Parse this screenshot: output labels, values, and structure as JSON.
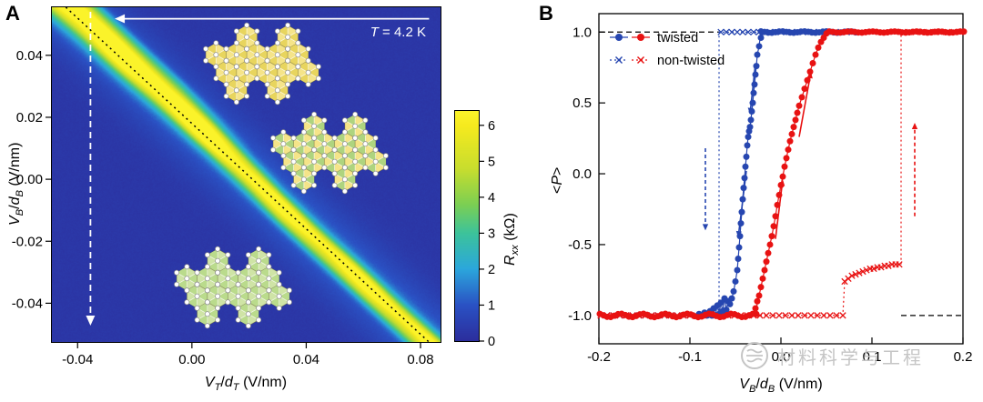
{
  "figure": {
    "background": "#ffffff",
    "watermark": {
      "text": "材料科学与工程"
    }
  },
  "chart_data": [
    {
      "id": "panel-a",
      "panel_label": "A",
      "type": "heatmap",
      "annotation": "T = 4.2 K",
      "xlabel": "V_T/d_T (V/nm)",
      "ylabel": "V_B/d_B (V/nm)",
      "xlim": [
        -0.049,
        0.087
      ],
      "ylim": [
        -0.0525,
        0.0555
      ],
      "xtick_values": [
        -0.04,
        0,
        0.04,
        0.08
      ],
      "xtick_labels": [
        "-0.04",
        "0.00",
        "0.04",
        "0.08"
      ],
      "ytick_values": [
        0.04,
        0.02,
        0,
        -0.02,
        -0.04
      ],
      "ytick_labels": [
        "0.04",
        "0.02",
        "0.00",
        "-0.02",
        "-0.04"
      ],
      "colorbar": {
        "label": "R_xx (kΩ)",
        "tick_values": [
          0,
          1,
          2,
          3,
          4,
          5,
          6
        ],
        "tick_labels": [
          "0",
          "1",
          "2",
          "3",
          "4",
          "5",
          "6"
        ],
        "vmin": 0,
        "vmax": 6.4
      },
      "colormap": [
        [
          0,
          "#2b2e9d"
        ],
        [
          1,
          "#2a52c4"
        ],
        [
          2,
          "#2ba7dc"
        ],
        [
          3,
          "#3cc39b"
        ],
        [
          3.8,
          "#7ccf53"
        ],
        [
          4.8,
          "#c8dd2e"
        ],
        [
          6,
          "#f6ea1e"
        ],
        [
          6.4,
          "#fbf32a"
        ]
      ],
      "background_value": 0.25,
      "ridge": {
        "slope": -0.85,
        "intercept": 0.018,
        "width": 0.0032,
        "peak": 6.3,
        "widen_left": 0.7,
        "glow_width": 0.011,
        "glow_amp": 1.1,
        "secondary": [
          {
            "offset": 0.0045,
            "amp": 2.6,
            "width": 0.0022,
            "fade_end": 0.032
          },
          {
            "offset": 0.0085,
            "amp": 1.5,
            "width": 0.002,
            "fade_end": 0.022
          },
          {
            "offset": -0.005,
            "amp": 1.4,
            "width": 0.002,
            "fade_start": 0.005
          }
        ]
      },
      "annotations": {
        "sweep_arrow": {
          "x1": 0.083,
          "x2": -0.027,
          "y": 0.0518,
          "color": "#ffffff"
        },
        "dashed_arrow_x": -0.0355,
        "diagonal_guide": true
      },
      "insets": [
        {
          "palette": "yellow",
          "name": "lattice-inset-top"
        },
        {
          "palette": "mixed",
          "name": "lattice-inset-middle"
        },
        {
          "palette": "green",
          "name": "lattice-inset-bottom"
        }
      ],
      "inset_palettes": {
        "yellow": [
          "#f5e489",
          "#e8d55e"
        ],
        "mixed": [
          "#f5e489",
          "#aed47f"
        ],
        "green": [
          "#cfe4a6",
          "#badb8c"
        ]
      }
    },
    {
      "id": "panel-b",
      "panel_label": "B",
      "type": "scatter",
      "xlabel": "V_B/d_B (V/nm)",
      "ylabel": "<P>",
      "xlim": [
        -0.2,
        0.2
      ],
      "ylim": [
        -1.2,
        1.13
      ],
      "xtick_values": [
        -0.2,
        -0.1,
        0,
        0.1,
        0.2
      ],
      "xtick_labels": [
        "-0.2",
        "-0.1",
        "0.0",
        "0.1",
        "0.2"
      ],
      "ytick_values": [
        -1,
        -0.5,
        0,
        0.5,
        1
      ],
      "ytick_labels": [
        "-1.0",
        "-0.5",
        "0.0",
        "0.5",
        "1.0"
      ],
      "colors": {
        "blue": "#2646b0",
        "red": "#e81212"
      },
      "legend": [
        {
          "label": "twisted",
          "marker": "circle"
        },
        {
          "label": "non-twisted",
          "marker": "x"
        }
      ],
      "series": [
        {
          "name": "twisted-backward-sweep",
          "color": "blue",
          "marker": "circle",
          "connect": "solid",
          "plateaus": [
            {
              "x0": -0.022,
              "x1": 0.08,
              "step": 0.004,
              "y": 1,
              "jitter": 0.005
            }
          ],
          "points": [
            [
              -0.022,
              0.96
            ],
            [
              -0.024,
              0.9
            ],
            [
              -0.026,
              0.84
            ],
            [
              -0.027,
              0.76
            ],
            [
              -0.028,
              0.7
            ],
            [
              -0.029,
              0.63
            ],
            [
              -0.03,
              0.57
            ],
            [
              -0.031,
              0.5
            ],
            [
              -0.032,
              0.44
            ],
            [
              -0.033,
              0.38
            ],
            [
              -0.034,
              0.33
            ],
            [
              -0.035,
              0.3
            ],
            [
              -0.036,
              0.26
            ],
            [
              -0.037,
              0.2
            ],
            [
              -0.038,
              0.12
            ],
            [
              -0.039,
              0.05
            ],
            [
              -0.04,
              -0.03
            ],
            [
              -0.041,
              -0.1
            ],
            [
              -0.042,
              -0.18
            ],
            [
              -0.043,
              -0.27
            ],
            [
              -0.044,
              -0.35
            ],
            [
              -0.045,
              -0.44
            ],
            [
              -0.046,
              -0.52
            ],
            [
              -0.047,
              -0.6
            ],
            [
              -0.048,
              -0.68
            ],
            [
              -0.05,
              -0.76
            ],
            [
              -0.052,
              -0.83
            ],
            [
              -0.054,
              -0.88
            ],
            [
              -0.056,
              -0.92
            ],
            [
              -0.058,
              -0.9
            ],
            [
              -0.06,
              -0.96
            ],
            [
              -0.062,
              -0.88
            ],
            [
              -0.064,
              -0.97
            ],
            [
              -0.066,
              -0.91
            ],
            [
              -0.068,
              -0.99
            ],
            [
              -0.07,
              -0.93
            ],
            [
              -0.072,
              -1
            ],
            [
              -0.074,
              -0.95
            ],
            [
              -0.076,
              -1
            ],
            [
              -0.078,
              -0.97
            ],
            [
              -0.081,
              -1
            ],
            [
              -0.084,
              -0.98
            ],
            [
              -0.087,
              -1
            ],
            [
              -0.09,
              -0.99
            ]
          ]
        },
        {
          "name": "twisted-forward-sweep",
          "color": "red",
          "marker": "circle",
          "connect": "solid",
          "plateaus": [
            {
              "x0": -0.199,
              "x1": -0.028,
              "step": 0.004,
              "y": -1,
              "jitter": 0.012
            },
            {
              "x0": 0.053,
              "x1": 0.199,
              "step": 0.004,
              "y": 1,
              "jitter": 0.004
            }
          ],
          "points": [
            [
              -0.028,
              -0.95
            ],
            [
              -0.026,
              -0.9
            ],
            [
              -0.024,
              -0.86
            ],
            [
              -0.022,
              -0.8
            ],
            [
              -0.02,
              -0.74
            ],
            [
              -0.018,
              -0.68
            ],
            [
              -0.016,
              -0.62
            ],
            [
              -0.014,
              -0.56
            ],
            [
              -0.012,
              -0.5
            ],
            [
              -0.01,
              -0.44
            ],
            [
              -0.008,
              -0.37
            ],
            [
              -0.006,
              -0.3
            ],
            [
              -0.004,
              -0.22
            ],
            [
              -0.002,
              -0.15
            ],
            [
              0,
              -0.08
            ],
            [
              0.002,
              -0.02
            ],
            [
              0.004,
              0.05
            ],
            [
              0.006,
              0.11
            ],
            [
              0.008,
              0.17
            ],
            [
              0.01,
              0.23
            ],
            [
              0.012,
              0.28
            ],
            [
              0.014,
              0.33
            ],
            [
              0.016,
              0.38
            ],
            [
              0.018,
              0.43
            ],
            [
              0.02,
              0.48
            ],
            [
              0.023,
              0.54
            ],
            [
              0.026,
              0.6
            ],
            [
              0.029,
              0.66
            ],
            [
              0.032,
              0.72
            ],
            [
              0.035,
              0.78
            ],
            [
              0.038,
              0.84
            ],
            [
              0.041,
              0.89
            ],
            [
              0.044,
              0.93
            ],
            [
              0.047,
              0.96
            ],
            [
              0.05,
              0.99
            ]
          ]
        },
        {
          "name": "non-twisted-backward-sweep",
          "color": "blue",
          "marker": "x",
          "connect": "dotted",
          "sweep": "desc",
          "plateaus": [
            {
              "x0": -0.066,
              "x1": 0.078,
              "step": 0.006,
              "y": 1
            },
            {
              "x0": -0.198,
              "x1": -0.07,
              "step": 0.007,
              "y": -1
            }
          ],
          "points": [],
          "jump": {
            "x": -0.068,
            "y0": 1,
            "y1": -1
          }
        },
        {
          "name": "non-twisted-forward-sweep",
          "color": "red",
          "marker": "x",
          "connect": "dotted",
          "sweep": "asc",
          "plateaus": [
            {
              "x0": -0.198,
              "x1": 0.066,
              "step": 0.007,
              "y": -1
            },
            {
              "x0": 0.134,
              "x1": 0.198,
              "step": 0.007,
              "y": 1
            }
          ],
          "points": [
            [
              0.07,
              -0.76
            ],
            [
              0.074,
              -0.74
            ],
            [
              0.078,
              -0.72
            ],
            [
              0.082,
              -0.71
            ],
            [
              0.086,
              -0.7
            ],
            [
              0.09,
              -0.69
            ],
            [
              0.094,
              -0.68
            ],
            [
              0.098,
              -0.67
            ],
            [
              0.102,
              -0.67
            ],
            [
              0.106,
              -0.66
            ],
            [
              0.11,
              -0.66
            ],
            [
              0.114,
              -0.65
            ],
            [
              0.118,
              -0.65
            ],
            [
              0.122,
              -0.64
            ],
            [
              0.126,
              -0.64
            ],
            [
              0.13,
              -0.64
            ]
          ],
          "jump": {
            "x": 0.132,
            "y0": -0.64,
            "y1": 1
          }
        }
      ],
      "guides": [
        {
          "y": 1,
          "x0": -0.2,
          "x1": -0.068
        },
        {
          "y": -1,
          "x0": 0.132,
          "x1": 0.2
        }
      ],
      "solid_arrows": [
        {
          "color": "blue",
          "x1": -0.028,
          "y1": 0.78,
          "x2": -0.034,
          "y2": 0.42
        },
        {
          "color": "blue",
          "x1": -0.038,
          "y1": 0.02,
          "x2": -0.047,
          "y2": -0.45
        },
        {
          "color": "red",
          "x1": -0.006,
          "y1": -0.46,
          "x2": 0.002,
          "y2": -0.04
        },
        {
          "color": "red",
          "x1": 0.02,
          "y1": 0.26,
          "x2": 0.033,
          "y2": 0.72
        }
      ],
      "dashed_arrows": [
        {
          "color": "blue",
          "x": -0.083,
          "y1": 0.18,
          "y2": -0.4
        },
        {
          "color": "red",
          "x": 0.147,
          "y1": -0.3,
          "y2": 0.36
        }
      ]
    }
  ]
}
